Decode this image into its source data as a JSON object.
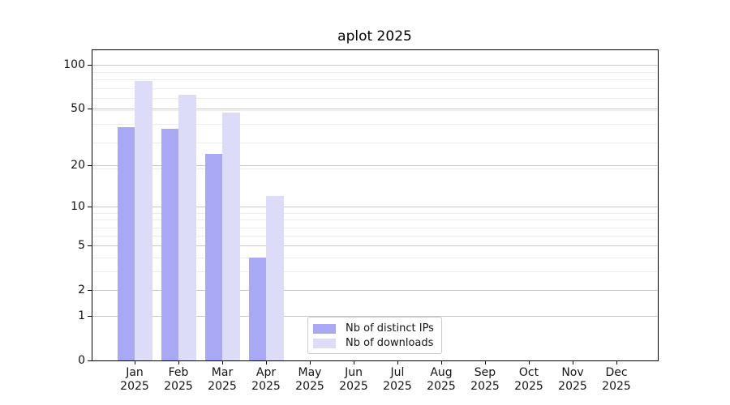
{
  "title": "aplot 2025",
  "chart_data": {
    "type": "bar",
    "title": "aplot 2025",
    "categories": [
      "Jan",
      "Feb",
      "Mar",
      "Apr",
      "May",
      "Jun",
      "Jul",
      "Aug",
      "Sep",
      "Oct",
      "Nov",
      "Dec"
    ],
    "year_label": "2025",
    "series": [
      {
        "name": "Nb of distinct IPs",
        "color": "#a8a8f5",
        "values": [
          37,
          36,
          24,
          4,
          0,
          0,
          0,
          0,
          0,
          0,
          0,
          0
        ]
      },
      {
        "name": "Nb of downloads",
        "color": "#dcdcf8",
        "values": [
          77,
          62,
          47,
          12,
          0,
          0,
          0,
          0,
          0,
          0,
          0,
          0
        ]
      }
    ],
    "yscale": "log10(1+v)",
    "y_major_ticks": [
      0,
      1,
      2,
      5,
      10,
      20,
      50,
      100
    ],
    "y_minor_gridlines": [
      3,
      4,
      6,
      7,
      8,
      9,
      19,
      29,
      39,
      49,
      59,
      69,
      79,
      89
    ],
    "ylim": [
      0,
      127
    ],
    "grid": "horizontal-only",
    "legend_position": "lower-center",
    "xlabel": "",
    "ylabel": ""
  },
  "colors": {
    "bar_distinct_ips": "#a8a8f5",
    "bar_downloads": "#dcdcf8",
    "major_grid": "#c6c6c6",
    "minor_grid": "#ececec",
    "axis": "#000000",
    "text": "#141414",
    "background": "#ffffff"
  }
}
